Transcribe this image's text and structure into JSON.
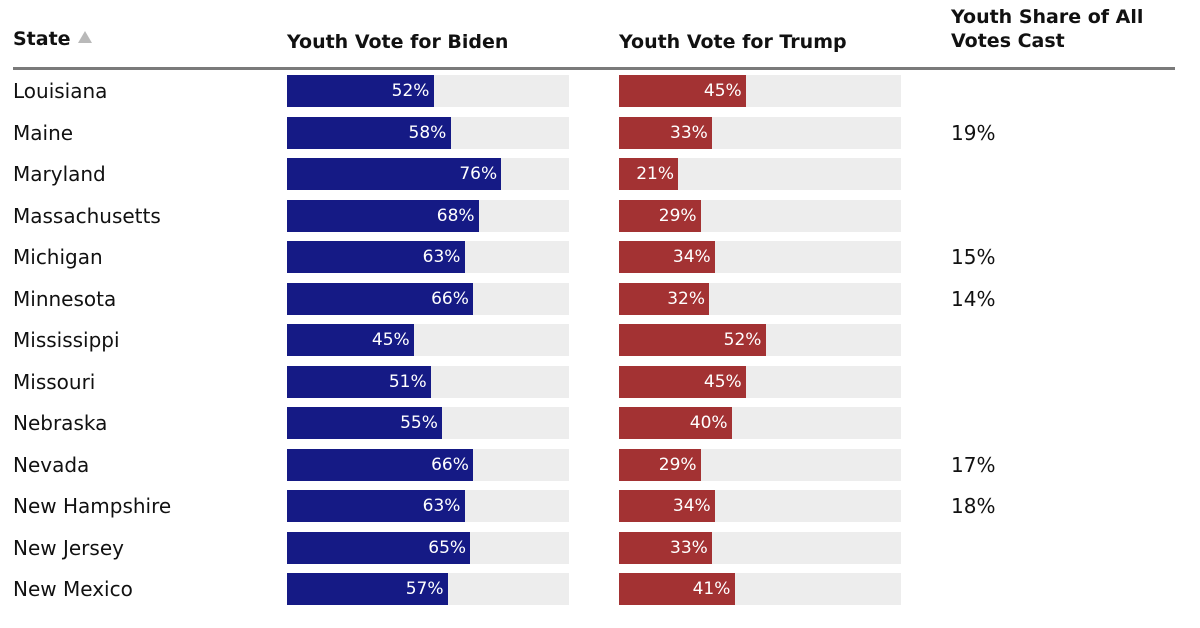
{
  "table": {
    "headers": {
      "state": "State",
      "biden": "Youth Vote for Biden",
      "trump": "Youth Vote for Trump",
      "share": "Youth Share of All Votes Cast"
    }
  },
  "chart_data": {
    "type": "bar",
    "orientation": "horizontal",
    "xlim": [
      0,
      100
    ],
    "categories": [
      "Louisiana",
      "Maine",
      "Maryland",
      "Massachusetts",
      "Michigan",
      "Minnesota",
      "Mississippi",
      "Missouri",
      "Nebraska",
      "Nevada",
      "New Hampshire",
      "New Jersey",
      "New Mexico"
    ],
    "series": [
      {
        "name": "Youth Vote for Biden",
        "color": "#151a85",
        "values": [
          52,
          58,
          76,
          68,
          63,
          66,
          45,
          51,
          55,
          66,
          63,
          65,
          57
        ]
      },
      {
        "name": "Youth Vote for Trump",
        "color": "#a33233",
        "values": [
          45,
          33,
          21,
          29,
          34,
          32,
          52,
          45,
          40,
          29,
          34,
          33,
          41
        ]
      }
    ],
    "share": [
      "",
      "19%",
      "",
      "",
      "15%",
      "14%",
      "",
      "",
      "",
      "17%",
      "18%",
      "",
      ""
    ]
  }
}
